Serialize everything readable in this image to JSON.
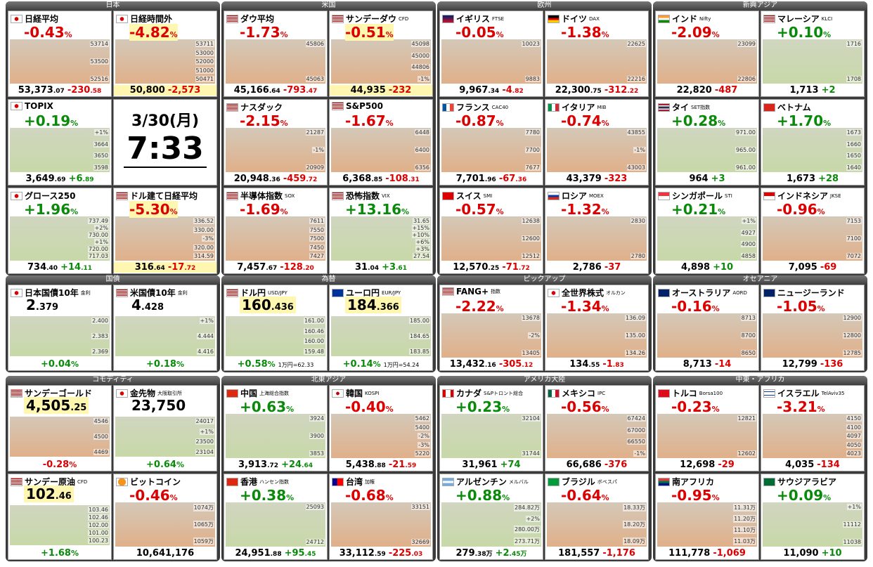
{
  "groups": [
    {
      "title": "日本",
      "cells": [
        {
          "name": "日経平均",
          "flag": "jp",
          "pct": "-0.43%",
          "price": "53,373.07",
          "change": "-230.58",
          "labels": [
            "53714",
            "53500",
            "52516"
          ]
        },
        {
          "name": "日経時間外",
          "flag": "jp",
          "pct": "-4.82%",
          "price": "50,800",
          "change": "-2,573",
          "labels": [
            "53711",
            "53000",
            "52000",
            "51000",
            "50471"
          ],
          "highlight": true
        },
        {
          "name": "TOPIX",
          "flag": "jp",
          "pct": "+0.19%",
          "price": "3,649.69",
          "change": "+6.89",
          "labels": [
            "+1%",
            "3664",
            "3650",
            "3598"
          ]
        },
        {
          "date": "3/30(月)",
          "time": "7:33"
        },
        {
          "name": "グロース250",
          "flag": "jp",
          "pct": "+1.96%",
          "price": "734.40",
          "change": "+14.11",
          "labels": [
            "737.49",
            "+2%",
            "730.00",
            "+1%",
            "720.00",
            "717.03"
          ]
        },
        {
          "name": "ドル建て日経平均",
          "flag": "us",
          "pct": "-5.30%",
          "price": "316.64",
          "change": "-17.72",
          "labels": [
            "336.52",
            "330.00",
            "-3%",
            "320.00",
            "314.59"
          ],
          "highlight": true
        }
      ]
    },
    {
      "title": "米国",
      "cells": [
        {
          "name": "ダウ平均",
          "flag": "us",
          "pct": "-1.73%",
          "price": "45,166.64",
          "change": "-793.47",
          "labels": [
            "45806",
            "45063"
          ]
        },
        {
          "name": "サンデーダウ",
          "sub": "CFD",
          "flag": "us",
          "pct": "-0.51%",
          "price": "44,935",
          "change": "-232",
          "labels": [
            "45098",
            "45000",
            "44806",
            "-1%"
          ],
          "highlight": true
        },
        {
          "name": "ナスダック",
          "flag": "us",
          "pct": "-2.15%",
          "price": "20,948.36",
          "change": "-459.72",
          "labels": [
            "21287",
            "-1%",
            "20909"
          ]
        },
        {
          "name": "S&P500",
          "flag": "us",
          "pct": "-1.67%",
          "price": "6,368.85",
          "change": "-108.31",
          "labels": [
            "6448",
            "6400",
            "6356"
          ]
        },
        {
          "name": "半導体指数",
          "sub": "SOX",
          "flag": "us",
          "pct": "-1.69%",
          "price": "7,457.67",
          "change": "-128.20",
          "labels": [
            "7611",
            "7550",
            "7500",
            "7450",
            "7427"
          ]
        },
        {
          "name": "恐怖指数",
          "sub": "VIX",
          "flag": "us",
          "pct": "+13.16%",
          "price": "31.04",
          "change": "+3.61",
          "labels": [
            "31.65",
            "+15%",
            "+10%",
            "+6%",
            "+3%",
            "27.54"
          ]
        }
      ]
    },
    {
      "title": "欧州",
      "cells": [
        {
          "name": "イギリス",
          "sub": "FTSE",
          "flag": "gb",
          "pct": "-0.05%",
          "price": "9,967.34",
          "change": "-4.82",
          "labels": [
            "10023",
            "9883"
          ]
        },
        {
          "name": "ドイツ",
          "sub": "DAX",
          "flag": "de",
          "pct": "-1.38%",
          "price": "22,300.75",
          "change": "-312.22",
          "labels": [
            "22625",
            "22216"
          ]
        },
        {
          "name": "フランス",
          "sub": "CAC40",
          "flag": "fr",
          "pct": "-0.87%",
          "price": "7,701.96",
          "change": "-67.36",
          "labels": [
            "7780",
            "7700",
            "7677"
          ]
        },
        {
          "name": "イタリア",
          "sub": "MIB",
          "flag": "it",
          "pct": "-0.74%",
          "price": "43,379",
          "change": "-323",
          "labels": [
            "43855",
            "-1%",
            "43003"
          ]
        },
        {
          "name": "スイス",
          "sub": "SMI",
          "flag": "ch",
          "pct": "-0.57%",
          "price": "12,570.25",
          "change": "-71.72",
          "labels": [
            "12638",
            "12600",
            "12512"
          ]
        },
        {
          "name": "ロシア",
          "sub": "MOEX",
          "flag": "ru",
          "pct": "-1.32%",
          "price": "2,786",
          "change": "-37",
          "labels": [
            "2830",
            "2780"
          ]
        }
      ]
    },
    {
      "title": "新興アジア",
      "cells": [
        {
          "name": "インド",
          "sub": "Nifty",
          "flag": "in",
          "pct": "-2.09%",
          "price": "22,820",
          "change": "-487",
          "labels": [
            "23099",
            "22806"
          ]
        },
        {
          "name": "マレーシア",
          "sub": "KLCI",
          "flag": "my",
          "pct": "+0.10%",
          "price": "1,713",
          "change": "+2",
          "labels": [
            "1716",
            "1708"
          ]
        },
        {
          "name": "タイ",
          "sub": "SET指数",
          "flag": "th",
          "pct": "+0.28%",
          "price": "964",
          "change": "+3",
          "labels": [
            "971.00",
            "965.00",
            "961.00"
          ]
        },
        {
          "name": "ベトナム",
          "flag": "vn",
          "pct": "+1.70%",
          "price": "1,673",
          "change": "+28",
          "labels": [
            "1673",
            "1660",
            "1650",
            "1640"
          ]
        },
        {
          "name": "シンガポール",
          "sub": "STI",
          "flag": "sg",
          "pct": "+0.21%",
          "price": "4,898",
          "change": "+10",
          "labels": [
            "+1%",
            "4927",
            "4900",
            "4858"
          ]
        },
        {
          "name": "インドネシア",
          "sub": "JKSE",
          "flag": "id",
          "pct": "-0.96%",
          "price": "7,095",
          "change": "-69",
          "labels": [
            "7153",
            "7100",
            "7072"
          ]
        }
      ]
    },
    {
      "title": "国債",
      "cells": [
        {
          "name": "日本国債10年",
          "sub": "金利",
          "flag": "jp",
          "style": "top",
          "price": "2.379",
          "pct": "+0.04%",
          "labels": [
            "2.400",
            "2.383",
            "2.369"
          ]
        },
        {
          "name": "米国債10年",
          "sub": "金利",
          "flag": "us",
          "style": "top",
          "price": "4.428",
          "pct": "+0.18%",
          "labels": [
            "+1%",
            "4.444",
            "4.416"
          ]
        }
      ]
    },
    {
      "title": "為替",
      "cells": [
        {
          "name": "ドル円",
          "sub": "USD/JPY",
          "flag": "us",
          "style": "top",
          "price": "160.436",
          "pct": "+0.58%",
          "note": "1万円=62.33",
          "labels": [
            "161.00",
            "160.46",
            "160.00",
            "159.48"
          ],
          "highlight": true
        },
        {
          "name": "ユーロ円",
          "sub": "EUR/JPY",
          "flag": "eu",
          "style": "top",
          "price": "184.366",
          "pct": "+0.14%",
          "note": "1万円=54.24",
          "labels": [
            "185.00",
            "184.65",
            "183.85"
          ],
          "highlight": true
        }
      ]
    },
    {
      "title": "ピックアップ",
      "cells": [
        {
          "name": "FANG+",
          "sub": "指数",
          "flag": "us",
          "pct": "-2.22%",
          "price": "13,432.16",
          "change": "-305.12",
          "labels": [
            "13678",
            "-2%",
            "13405"
          ]
        },
        {
          "name": "全世界株式",
          "sub": "オルカン",
          "flag": "jp",
          "pct": "-1.34%",
          "price": "134.55",
          "change": "-1.83",
          "labels": [
            "136.09",
            "135.00",
            "134.26"
          ]
        }
      ]
    },
    {
      "title": "オセアニア",
      "cells": [
        {
          "name": "オーストラリア",
          "sub": "AORD",
          "flag": "au",
          "pct": "-0.16%",
          "price": "8,713",
          "change": "-14",
          "labels": [
            "8713",
            "8700",
            "8650"
          ]
        },
        {
          "name": "ニュージーランド",
          "flag": "nz",
          "pct": "-1.05%",
          "price": "12,799",
          "change": "-136",
          "labels": [
            "12900",
            "12800",
            "12785"
          ]
        }
      ]
    },
    {
      "title": "コモディティ",
      "cells": [
        {
          "name": "サンデーゴールド",
          "flag": "us",
          "style": "top",
          "price": "4,505.25",
          "pct": "-0.28%",
          "labels": [
            "4546",
            "4500",
            "4469"
          ],
          "highlight": true
        },
        {
          "name": "金先物",
          "sub": "大阪取引所",
          "flag": "jp",
          "style": "top",
          "price": "23,750",
          "pct": "+0.64%",
          "labels": [
            "24017",
            "+1%",
            "23500",
            "23104"
          ]
        },
        {
          "name": "サンデー原油",
          "sub": "CFD",
          "flag": "us",
          "style": "top",
          "price": "102.46",
          "pct": "+1.68%",
          "labels": [
            "103.46",
            "102.46",
            "102.00",
            "101.00",
            "100.23"
          ],
          "highlight": true
        },
        {
          "name": "ビットコイン",
          "flag": "btc",
          "pct": "-0.46%",
          "price": "10,641,176",
          "labels": [
            "1074万",
            "1065万",
            "1059万"
          ]
        }
      ]
    },
    {
      "title": "北東アジア",
      "cells": [
        {
          "name": "中国",
          "sub": "上海総合指数",
          "flag": "cn",
          "pct": "+0.63%",
          "price": "3,913.72",
          "change": "+24.64",
          "labels": [
            "3924",
            "3900",
            "3853"
          ]
        },
        {
          "name": "韓国",
          "sub": "KOSPI",
          "flag": "kr",
          "pct": "-0.40%",
          "price": "5,438.88",
          "change": "-21.59",
          "labels": [
            "5462",
            "5400",
            "-2%",
            "-3%",
            "5220"
          ]
        },
        {
          "name": "香港",
          "sub": "ハンセン指数",
          "flag": "hk",
          "pct": "+0.38%",
          "price": "24,951.88",
          "change": "+95.45",
          "labels": [
            "25093",
            "24712"
          ]
        },
        {
          "name": "台湾",
          "sub": "加権",
          "flag": "tw",
          "pct": "-0.68%",
          "price": "33,112.59",
          "change": "-225.03",
          "labels": [
            "33151",
            "32669"
          ]
        }
      ]
    },
    {
      "title": "アメリカ大陸",
      "cells": [
        {
          "name": "カナダ",
          "sub": "S&Pトロント総合",
          "flag": "ca",
          "pct": "+0.23%",
          "price": "31,961",
          "change": "+74",
          "labels": [
            "32104",
            "31744"
          ]
        },
        {
          "name": "メキシコ",
          "sub": "IPC",
          "flag": "mx",
          "pct": "-0.56%",
          "price": "66,686",
          "change": "-376",
          "labels": [
            "67424",
            "67000",
            "66550",
            "-1%"
          ]
        },
        {
          "name": "アルゼンチン",
          "sub": "メルバル",
          "flag": "ar",
          "pct": "+0.88%",
          "price": "279.38万",
          "change": "+2.45万",
          "labels": [
            "284.82万",
            "+2%",
            "280.00万",
            "273.71万"
          ]
        },
        {
          "name": "ブラジル",
          "sub": "ボベスパ",
          "flag": "br",
          "pct": "-0.64%",
          "price": "181,557",
          "change": "-1,176",
          "labels": [
            "18.33万",
            "18.20万",
            "18.09万"
          ]
        }
      ]
    },
    {
      "title": "中東・アフリカ",
      "cells": [
        {
          "name": "トルコ",
          "sub": "Borsa100",
          "flag": "tr",
          "pct": "-0.23%",
          "price": "12,698",
          "change": "-29",
          "labels": [
            "12821",
            "12602"
          ]
        },
        {
          "name": "イスラエル",
          "sub": "TelAviv35",
          "flag": "il",
          "pct": "-3.21%",
          "price": "4,035",
          "change": "-134",
          "labels": [
            "4150",
            "4100",
            "4097",
            "4050",
            "4023"
          ]
        },
        {
          "name": "南アフリカ",
          "flag": "za",
          "pct": "-0.95%",
          "price": "111,778",
          "change": "-1,069",
          "labels": [
            "11.31万",
            "11.20万",
            "11.10万",
            "11.03万"
          ]
        },
        {
          "name": "サウジアラビア",
          "flag": "sa",
          "pct": "+0.09%",
          "price": "11,090",
          "change": "+10",
          "labels": [
            "+1%",
            "11112",
            "11038"
          ]
        }
      ]
    }
  ]
}
